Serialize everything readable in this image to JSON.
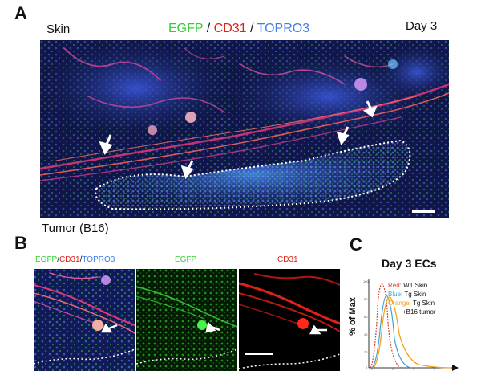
{
  "panel_a": {
    "letter": "A",
    "label_skin": "Skin",
    "label_tumor": "Tumor (B16)",
    "label_day": "Day 3",
    "stain_egfp": "EGFP",
    "stain_cd31": "CD31",
    "stain_topro3": "TOPRO3",
    "slash": "/"
  },
  "panel_b": {
    "letter": "B",
    "merge_egfp": "EGFP",
    "merge_cd31": "CD31",
    "merge_topro3": "TOPRO3",
    "slash": "/",
    "egfp_label": "EGFP",
    "cd31_label": "CD31"
  },
  "panel_c": {
    "letter": "C",
    "title": "Day 3 ECs",
    "y_label": "% of Max",
    "y_ticks": [
      "100",
      "80",
      "60",
      "40",
      "20",
      "0"
    ],
    "legend": {
      "red_key": "Red:",
      "red_text": "WT Skin",
      "blue_key": "Blue:",
      "blue_text": "Tg Skin",
      "orange_key": "Orange:",
      "orange_text": "Tg Skin",
      "orange_text2": "+B16 tumor"
    },
    "colors": {
      "red": "#e23b2e",
      "blue": "#3fa0d8",
      "orange": "#f0a21c"
    }
  }
}
